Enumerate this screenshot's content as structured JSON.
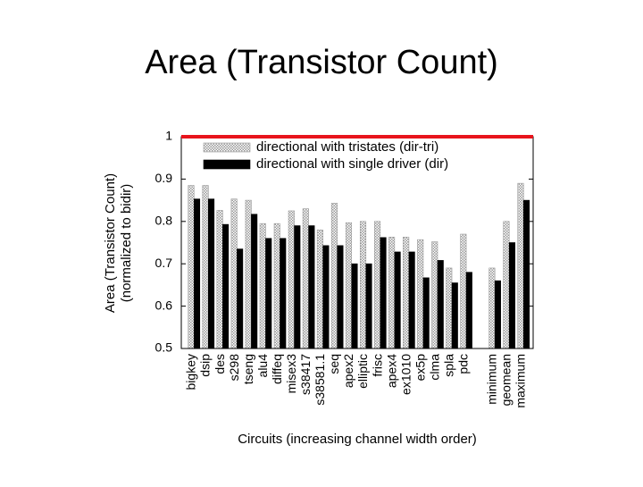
{
  "chart_data": {
    "type": "bar",
    "title": "Area (Transistor Count)",
    "ylabel": [
      "Area (Transistor Count)",
      "(normalized to bidir)"
    ],
    "xlabel": "Circuits (increasing channel width order)",
    "categories": [
      "bigkey",
      "dsip",
      "des",
      "s298",
      "tseng",
      "alu4",
      "diffeq",
      "misex3",
      "s38417",
      "s38581.1",
      "seq",
      "apex2",
      "elliptic",
      "frisc",
      "apex4",
      "ex1010",
      "ex5p",
      "clma",
      "spla",
      "pdc",
      null,
      "minimum",
      "geomean",
      "maximum"
    ],
    "series": [
      {
        "name": "directional with tristates (dir-tri)",
        "color": "#c8c8c8",
        "pattern": "dotted",
        "values": [
          0.885,
          0.885,
          0.826,
          0.853,
          0.85,
          0.795,
          0.795,
          0.825,
          0.83,
          0.78,
          0.843,
          0.797,
          0.8,
          0.8,
          0.763,
          0.763,
          0.757,
          0.752,
          0.69,
          0.77,
          null,
          0.69,
          0.8,
          0.89
        ]
      },
      {
        "name": "directional with single driver (dir)",
        "color": "#000000",
        "values": [
          0.853,
          0.853,
          0.793,
          0.735,
          0.817,
          0.76,
          0.76,
          0.79,
          0.79,
          0.743,
          0.743,
          0.7,
          0.7,
          0.762,
          0.728,
          0.728,
          0.667,
          0.708,
          0.655,
          0.68,
          null,
          0.66,
          0.75,
          0.85
        ]
      }
    ],
    "reference_line": {
      "value": 1,
      "color": "#e8141c"
    },
    "ylim": [
      0.5,
      1
    ],
    "yticks": [
      0.5,
      0.6,
      0.7,
      0.8,
      0.9,
      1
    ],
    "legend": "top"
  }
}
